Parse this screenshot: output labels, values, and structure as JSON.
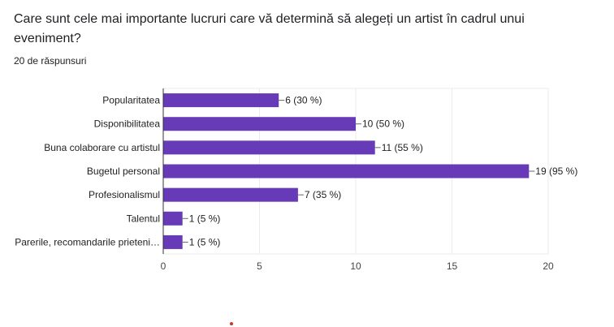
{
  "question": {
    "title": "Care sunt cele mai importante lucruri care vă determină să alegeți un artist în cadrul unui eveniment?",
    "responses": "20 de răspunsuri"
  },
  "colors": {
    "bar": "#673ab7",
    "grid": "#ebebeb",
    "axis": "#333333"
  },
  "chart_data": {
    "type": "bar",
    "orientation": "horizontal",
    "categories": [
      "Popularitatea",
      "Disponibilitatea",
      "Buna colaborare cu artistul",
      "Bugetul personal",
      "Profesionalismul",
      "Talentul",
      "Parerile, recomandarile prieteni…"
    ],
    "values": [
      6,
      10,
      11,
      19,
      7,
      1,
      1
    ],
    "data_labels": [
      "6 (30 %)",
      "10 (50 %)",
      "11 (55 %)",
      "19 (95 %)",
      "7 (35 %)",
      "1 (5 %)",
      "1 (5 %)"
    ],
    "xlim": [
      0,
      20
    ],
    "xticks": [
      "0",
      "5",
      "10",
      "15",
      "20"
    ],
    "grid": true
  }
}
